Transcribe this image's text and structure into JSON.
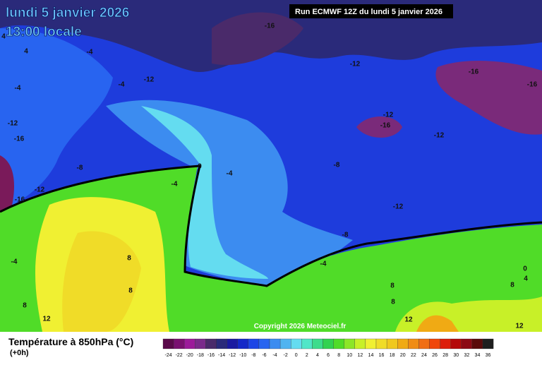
{
  "header": {
    "date": "lundi 5 janvier 2026",
    "time": "13:00 locale",
    "run": "Run ECMWF 12Z du lundi 5 janvier 2026"
  },
  "map": {
    "contour_labels": [
      "-16",
      "-12",
      "-4",
      "-4",
      "-4",
      "-12",
      "-16",
      "-16",
      "-12",
      "-16",
      "-12",
      "-12",
      "-16",
      "-8",
      "-12",
      "-16",
      "0",
      "-4",
      "-4",
      "-8",
      "-12",
      "-8",
      "-4",
      "-4",
      "8",
      "8",
      "8",
      "12",
      "8",
      "8",
      "12",
      "12",
      "8",
      "0",
      "4",
      "4",
      "4"
    ],
    "copyright": "Copyright 2026 Meteociel.fr"
  },
  "legend": {
    "title": "Température à 850hPa (°C)",
    "subtitle": "(+0h)",
    "ticks": [
      -24,
      -22,
      -20,
      -18,
      -16,
      -14,
      -12,
      -10,
      -8,
      -6,
      -4,
      -2,
      0,
      2,
      4,
      6,
      8,
      10,
      12,
      14,
      16,
      18,
      20,
      22,
      24,
      26,
      28,
      30,
      32,
      34,
      36
    ],
    "colors": [
      "#5a0a4a",
      "#7a1070",
      "#9c1a9a",
      "#7a2a8a",
      "#4a2a6a",
      "#2a2a7a",
      "#1a1aa0",
      "#1428c8",
      "#1e46e6",
      "#2864f0",
      "#3c8cf0",
      "#50b4f0",
      "#64dcf0",
      "#50e6c8",
      "#3cdc8c",
      "#32d250",
      "#50dc28",
      "#8ce628",
      "#c8f028",
      "#f0f032",
      "#f0dc28",
      "#f0c81e",
      "#f0aa14",
      "#f08c14",
      "#f06e14",
      "#f0460a",
      "#dc1e0a",
      "#b40a0a",
      "#8c0a14",
      "#5a0a0a",
      "#1e1e1e"
    ]
  }
}
